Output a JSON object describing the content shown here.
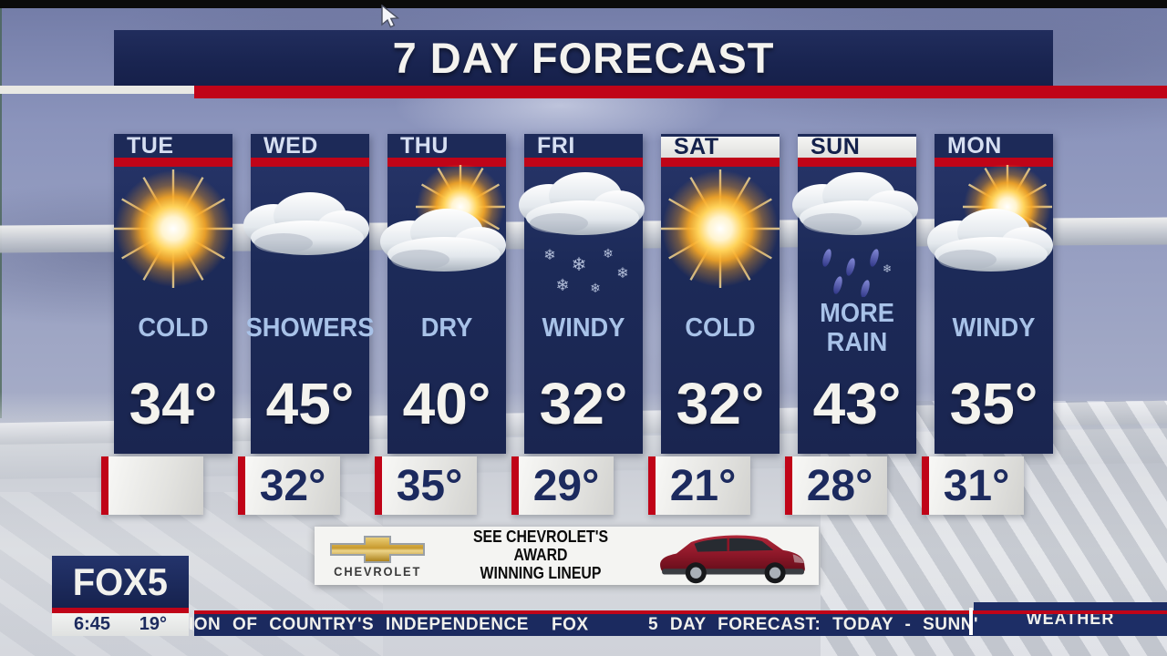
{
  "title": "7 DAY FORECAST",
  "days": [
    {
      "label": "TUE",
      "icon": "sunny",
      "condition": "COLD",
      "high": "34°",
      "low": "",
      "weekend": false
    },
    {
      "label": "WED",
      "icon": "cloudy",
      "condition": "SHOWERS",
      "high": "45°",
      "low": "32°",
      "weekend": false
    },
    {
      "label": "THU",
      "icon": "partly-sunny",
      "condition": "DRY",
      "high": "40°",
      "low": "35°",
      "weekend": false
    },
    {
      "label": "FRI",
      "icon": "snow-showers",
      "condition": "WINDY",
      "high": "32°",
      "low": "29°",
      "weekend": false
    },
    {
      "label": "SAT",
      "icon": "sunny",
      "condition": "COLD",
      "high": "32°",
      "low": "21°",
      "weekend": true
    },
    {
      "label": "SUN",
      "icon": "rain",
      "condition": "MORE RAIN",
      "high": "43°",
      "low": "28°",
      "weekend": true
    },
    {
      "label": "MON",
      "icon": "partly-sunny",
      "condition": "WINDY",
      "high": "35°",
      "low": "31°",
      "weekend": false
    }
  ],
  "ad": {
    "brand": "CHEVROLET",
    "line1": "SEE CHEVROLET'S AWARD",
    "line2": "WINNING LINEUP"
  },
  "station": {
    "logo": "FOX5",
    "time": "6:45",
    "temp": "19°"
  },
  "ticker": {
    "news": "ION OF COUNTRY'S INDEPENDENCE",
    "fox": "FOX",
    "forecast": "5 DAY FORECAST:  TODAY - SUNN'",
    "weather_label": "WEATHER"
  },
  "colors": {
    "navy": "#1d2a58",
    "title_navy": "#192450",
    "red": "#c00418",
    "condition_blue": "#a8c2e8",
    "temp_white": "#f4f3ee",
    "low_navy": "#1c2a5e",
    "chevy_gold": "#d4a437",
    "car_maroon": "#8c1728"
  }
}
